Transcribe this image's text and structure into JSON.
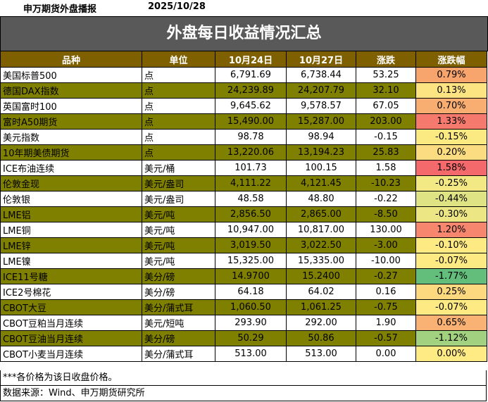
{
  "header": {
    "org": "申万期货外盘播报",
    "date": "2025/10/28"
  },
  "banner_title": "外盘每日收益情况汇总",
  "columns": [
    "品种",
    "单位",
    "10月24日",
    "10月27日",
    "涨跌",
    "涨跌幅"
  ],
  "rows": [
    {
      "name": "美国标普500",
      "unit": "点",
      "d1": "6,791.69",
      "d2": "6,738.44",
      "chg": "53.25",
      "pct": "0.79%",
      "pct_color": "#f8a56d"
    },
    {
      "name": "德国DAX指数",
      "unit": "点",
      "d1": "24,239.89",
      "d2": "24,207.79",
      "chg": "32.10",
      "pct": "0.13%",
      "pct_color": "#fde483"
    },
    {
      "name": "英国富时100",
      "unit": "点",
      "d1": "9,645.62",
      "d2": "9,578.57",
      "chg": "67.05",
      "pct": "0.70%",
      "pct_color": "#f8ad71"
    },
    {
      "name": "富时A50期货",
      "unit": "点",
      "d1": "15,490.00",
      "d2": "15,287.00",
      "chg": "203.00",
      "pct": "1.33%",
      "pct_color": "#f57a6d"
    },
    {
      "name": "美元指数",
      "unit": "点",
      "d1": "98.78",
      "d2": "98.94",
      "chg": "-0.15",
      "pct": "-0.15%",
      "pct_color": "#fbe982"
    },
    {
      "name": "10年期美债期货",
      "unit": "点",
      "d1": "13,220.06",
      "d2": "13,194.23",
      "chg": "25.83",
      "pct": "0.20%",
      "pct_color": "#fcdc80"
    },
    {
      "name": "ICE布油连续",
      "unit": "美元/桶",
      "d1": "101.73",
      "d2": "100.15",
      "chg": "1.58",
      "pct": "1.58%",
      "pct_color": "#f4696b"
    },
    {
      "name": "伦敦金现",
      "unit": "美元/盎司",
      "d1": "4,111.22",
      "d2": "4,121.45",
      "chg": "-10.23",
      "pct": "-0.25%",
      "pct_color": "#f2e884"
    },
    {
      "name": "伦敦银",
      "unit": "美元/盎司",
      "d1": "48.58",
      "d2": "48.80",
      "chg": "-0.22",
      "pct": "-0.44%",
      "pct_color": "#e0e383"
    },
    {
      "name": "LME铝",
      "unit": "美元/吨",
      "d1": "2,856.50",
      "d2": "2,865.00",
      "chg": "-8.50",
      "pct": "-0.30%",
      "pct_color": "#ece684"
    },
    {
      "name": "LME铜",
      "unit": "美元/吨",
      "d1": "10,947.00",
      "d2": "10,817.00",
      "chg": "130.00",
      "pct": "1.20%",
      "pct_color": "#f6866e"
    },
    {
      "name": "LME锌",
      "unit": "美元/吨",
      "d1": "3,019.50",
      "d2": "3,022.50",
      "chg": "-3.00",
      "pct": "-0.10%",
      "pct_color": "#fdea83"
    },
    {
      "name": "LME镍",
      "unit": "美元/吨",
      "d1": "15,325.00",
      "d2": "15,335.00",
      "chg": "-10.00",
      "pct": "-0.07%",
      "pct_color": "#fdea83"
    },
    {
      "name": "ICE11号糖",
      "unit": "美分/磅",
      "d1": "14.9700",
      "d2": "15.2400",
      "chg": "-0.27",
      "pct": "-1.77%",
      "pct_color": "#63be7b"
    },
    {
      "name": "ICE2号棉花",
      "unit": "美分/磅",
      "d1": "64.18",
      "d2": "64.02",
      "chg": "0.16",
      "pct": "0.25%",
      "pct_color": "#fcd87f"
    },
    {
      "name": "CBOT大豆",
      "unit": "美分/蒲式耳",
      "d1": "1,060.50",
      "d2": "1,061.25",
      "chg": "-0.75",
      "pct": "-0.07%",
      "pct_color": "#fdea83"
    },
    {
      "name": "CBOT豆粕当月连续",
      "unit": "美元/短吨",
      "d1": "293.90",
      "d2": "292.00",
      "chg": "1.90",
      "pct": "0.65%",
      "pct_color": "#f9b273"
    },
    {
      "name": "CBOT豆油当月连续",
      "unit": "美分/磅",
      "d1": "50.29",
      "d2": "50.86",
      "chg": "-0.57",
      "pct": "-1.12%",
      "pct_color": "#a2d17f"
    },
    {
      "name": "CBOT小麦当月连续",
      "unit": "美分/蒲式耳",
      "d1": "513.00",
      "d2": "513.00",
      "chg": "0.00",
      "pct": "0.00%",
      "pct_color": "#ffeb84"
    }
  ],
  "notes": {
    "price_note": "***各价格为该日收盘价格。",
    "source": "数据来源：Wind、申万期货研究所"
  }
}
